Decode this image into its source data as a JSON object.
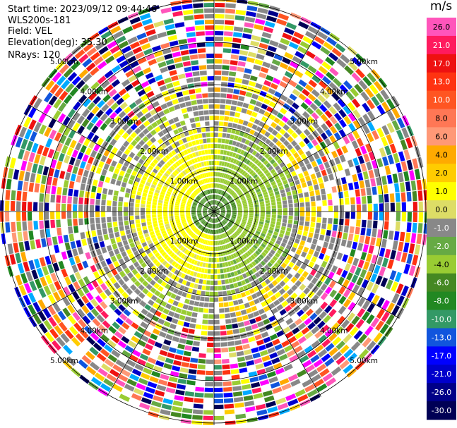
{
  "header": {
    "start_time": "Start time: 2023/09/12 09:44:46",
    "instrument": "WLS200s-181",
    "field": "Field: VEL",
    "elevation": "Elevation(deg): 35.30",
    "nrays": "NRays: 120"
  },
  "chart_data": {
    "type": "heatmap",
    "projection": "polar-ppi",
    "field": "VEL",
    "units": "m/s",
    "n_rays": 120,
    "range_rings_km": [
      1.0,
      2.0,
      3.0,
      4.0,
      5.0
    ],
    "range_ring_labels": [
      "1.00km",
      "2.00km",
      "3.00km",
      "4.00km",
      "5.00km"
    ],
    "spokes": 12,
    "colorbar": {
      "title": "m/s",
      "tick_labels": [
        "26.0",
        "21.0",
        "17.0",
        "13.0",
        "10.0",
        "8.0",
        "6.0",
        "4.0",
        "2.0",
        "1.0",
        "0.0",
        "-1.0",
        "-2.0",
        "-4.0",
        "-6.0",
        "-8.0",
        "-10.0",
        "-13.0",
        "-17.0",
        "-21.0",
        "-26.0",
        "-30.0"
      ],
      "colors": [
        "#ff55bb",
        "#ff1a5e",
        "#ee1111",
        "#ff3311",
        "#ff5522",
        "#ff7755",
        "#ff9977",
        "#ffaa00",
        "#ffcc00",
        "#ffff00",
        "#dddd66",
        "#888888",
        "#66aa44",
        "#99cc33",
        "#448822",
        "#228822",
        "#339966",
        "#1155dd",
        "#0000ff",
        "#0000cc",
        "#000088",
        "#000055"
      ]
    }
  }
}
